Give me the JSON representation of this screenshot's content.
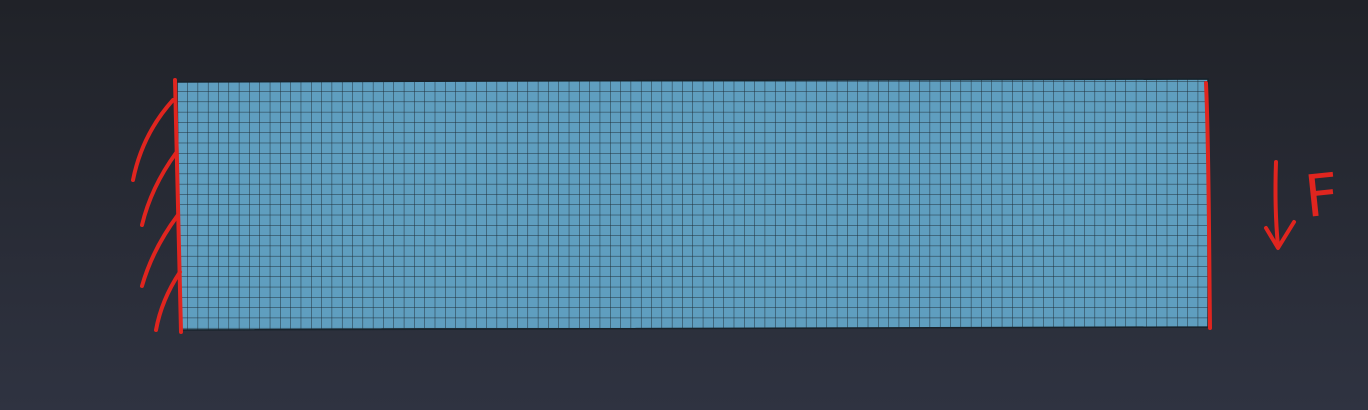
{
  "diagram": {
    "colors": {
      "background_top": "#202228",
      "background_bottom": "#2f3341",
      "mesh_fill": "#5f9ebf",
      "mesh_lines": "#18232b",
      "annotation": "#e0251f"
    },
    "mesh": {
      "columns": 100,
      "rows": 24
    },
    "annotations": {
      "fixed_support_hatch_count": 4,
      "load_label": "F",
      "load_direction": "down"
    }
  }
}
